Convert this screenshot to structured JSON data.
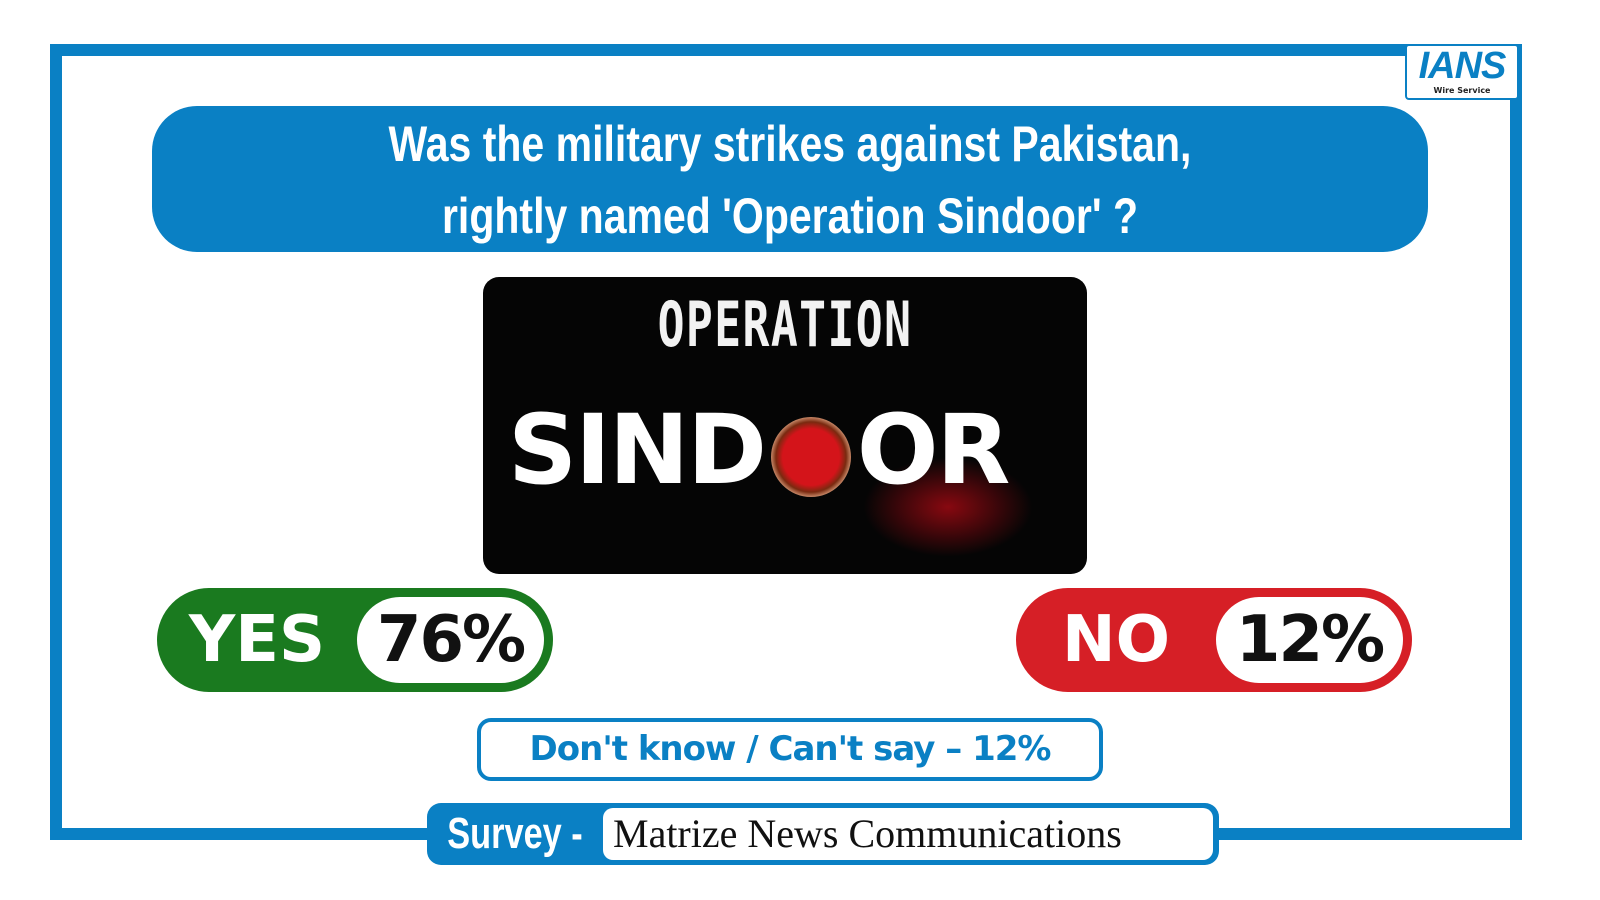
{
  "logo": {
    "name": "IANS",
    "tagline": "Wire Service"
  },
  "question": {
    "line1": "Was the military strikes against Pakistan,",
    "line2": "rightly named 'Operation Sindoor' ?"
  },
  "poster": {
    "top": "OPERATION",
    "left": "SIND",
    "right": "OR"
  },
  "results": {
    "yes": {
      "label": "YES",
      "value": "76%",
      "color": "#1a7a1f"
    },
    "no": {
      "label": "NO",
      "value": "12%",
      "color": "#d61f26"
    },
    "dont_know": "Don't know / Can't say – 12%"
  },
  "survey": {
    "label": "Survey -",
    "source": "Matrize News Communications"
  },
  "colors": {
    "accent": "#0a80c4"
  }
}
